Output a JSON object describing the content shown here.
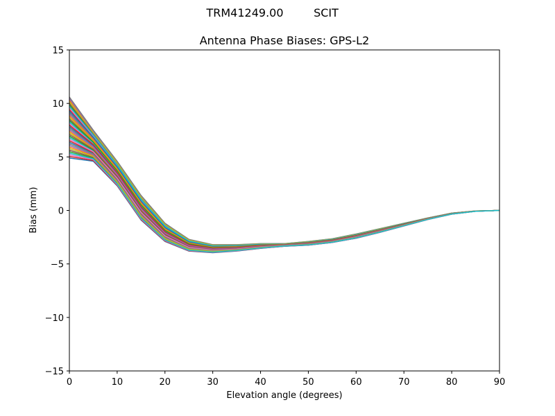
{
  "figure": {
    "suptitle_left": "TRM41249.00",
    "suptitle_right": "SCIT"
  },
  "chart_data": {
    "type": "line",
    "title": "Antenna Phase Biases: GPS-L2",
    "xlabel": "Elevation angle (degrees)",
    "ylabel": "Bias (mm)",
    "xlim": [
      0,
      90
    ],
    "ylim": [
      -15,
      15
    ],
    "xticks": [
      0,
      10,
      20,
      30,
      40,
      50,
      60,
      70,
      80,
      90
    ],
    "yticks": [
      -15,
      -10,
      -5,
      0,
      5,
      10,
      15
    ],
    "xtick_labels": [
      "0",
      "10",
      "20",
      "30",
      "40",
      "50",
      "60",
      "70",
      "80",
      "90"
    ],
    "ytick_labels": [
      "−15",
      "−10",
      "−5",
      "0",
      "5",
      "10",
      "15"
    ],
    "grid": false,
    "legend": "none",
    "x": [
      0,
      5,
      10,
      15,
      20,
      25,
      30,
      35,
      40,
      45,
      50,
      55,
      60,
      65,
      70,
      75,
      80,
      85,
      90
    ],
    "upper_envelope": [
      10.6,
      7.5,
      4.6,
      1.4,
      -1.2,
      -2.7,
      -3.2,
      -3.2,
      -3.1,
      -3.1,
      -2.9,
      -2.65,
      -2.2,
      -1.7,
      -1.2,
      -0.7,
      -0.25,
      -0.05,
      0.0
    ],
    "lower_envelope": [
      4.9,
      4.6,
      2.3,
      -0.9,
      -2.9,
      -3.8,
      -3.95,
      -3.8,
      -3.55,
      -3.35,
      -3.25,
      -3.0,
      -2.6,
      -2.05,
      -1.45,
      -0.85,
      -0.35,
      -0.08,
      0.0
    ],
    "series_count": 40,
    "colors": [
      "#1f77b4",
      "#ff7f0e",
      "#2ca02c",
      "#d62728",
      "#9467bd",
      "#8c564b",
      "#e377c2",
      "#7f7f7f",
      "#bcbd22",
      "#17becf"
    ]
  }
}
